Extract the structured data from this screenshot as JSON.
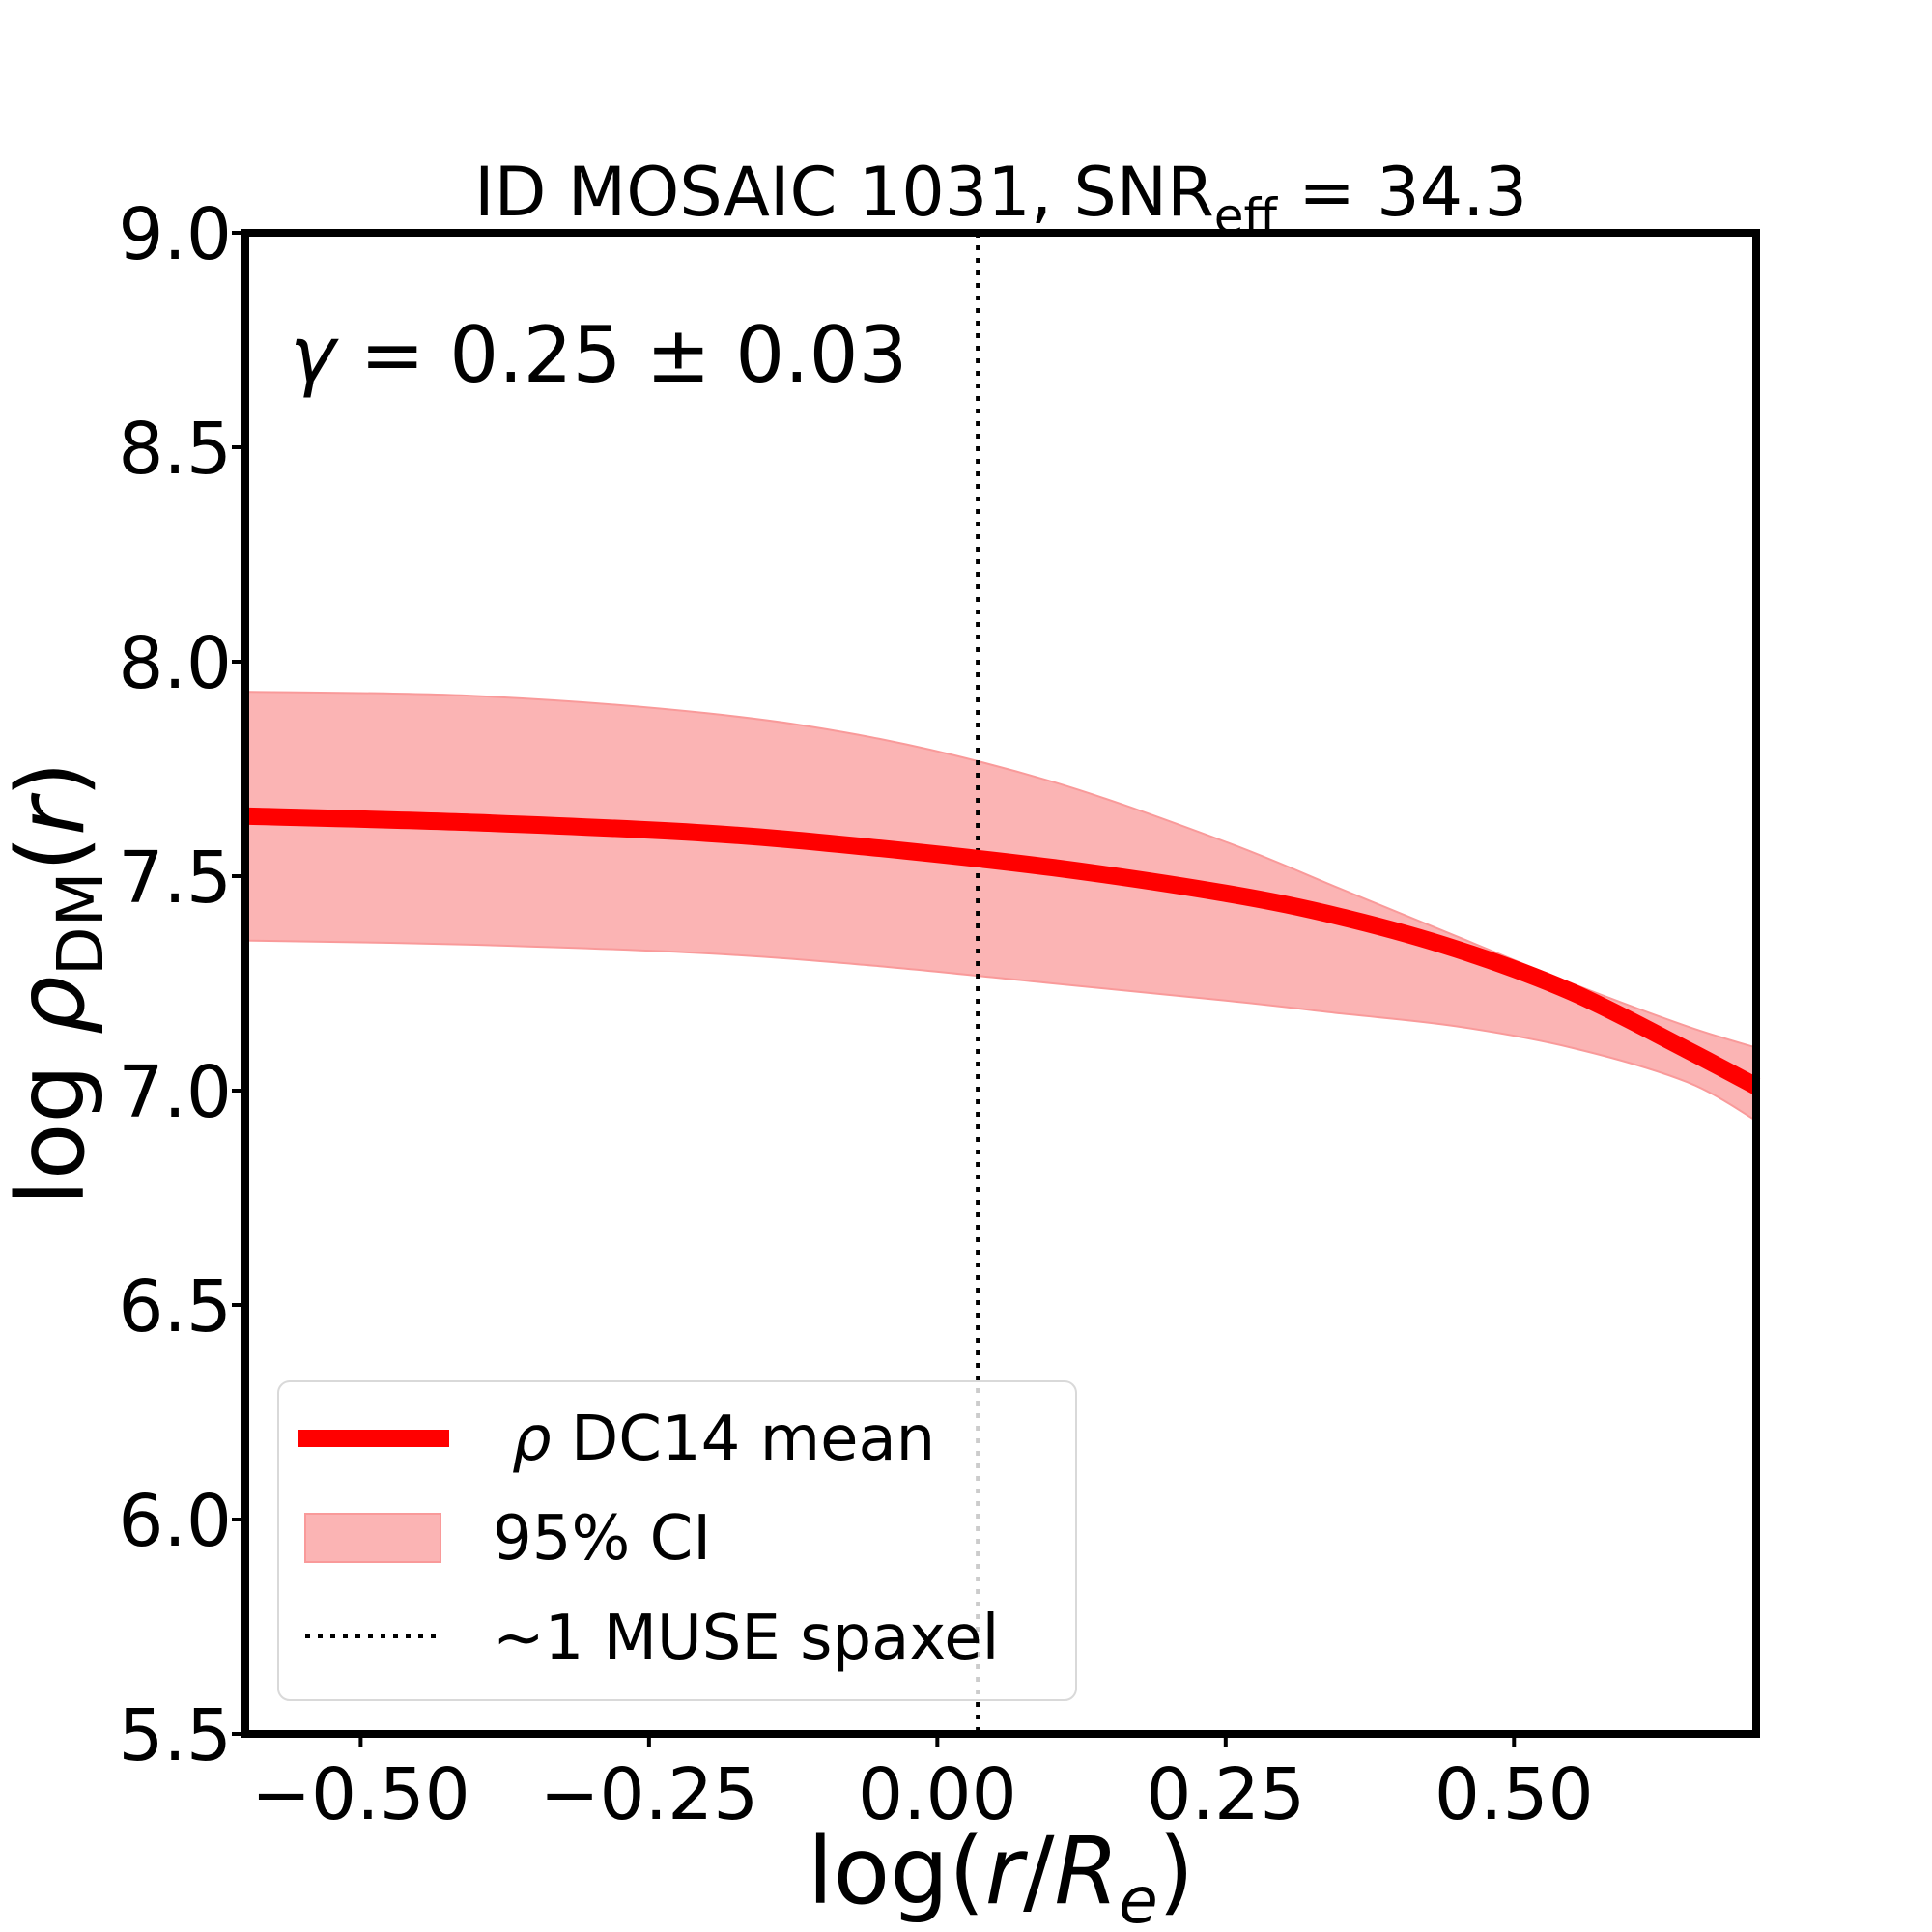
{
  "chart_data": {
    "type": "line",
    "title": {
      "prefix": "ID MOSAIC 1031, SNR",
      "sub": "eff",
      "suffix": " = 34.3"
    },
    "xlabel": {
      "pre": "log(",
      "r": "r",
      "slash": "/",
      "R": "R",
      "sub": "e",
      "post": ")"
    },
    "ylabel": {
      "pre": "log ",
      "rho": "ρ",
      "sub": "DM",
      "open": "(",
      "r": "r",
      "close": ")"
    },
    "xlim": [
      -0.6,
      0.71
    ],
    "ylim": [
      5.5,
      9.0
    ],
    "xticks": [
      -0.5,
      -0.25,
      0.0,
      0.25,
      0.5
    ],
    "xtick_labels": [
      "−0.50",
      "−0.25",
      "0.00",
      "0.25",
      "0.50"
    ],
    "yticks": [
      5.5,
      6.0,
      6.5,
      7.0,
      7.5,
      8.0,
      8.5,
      9.0
    ],
    "ytick_labels": [
      "5.5",
      "6.0",
      "6.5",
      "7.0",
      "7.5",
      "8.0",
      "8.5",
      "9.0"
    ],
    "x": [
      -0.6,
      -0.4,
      -0.2,
      -0.05,
      0.1,
      0.25,
      0.35,
      0.45,
      0.55,
      0.65,
      0.71
    ],
    "series": [
      {
        "name": "ρ DC14 mean",
        "values": [
          7.64,
          7.625,
          7.6,
          7.565,
          7.52,
          7.46,
          7.405,
          7.33,
          7.23,
          7.095,
          7.01
        ],
        "color": "#ff0000"
      }
    ],
    "band": {
      "name": "95% CI",
      "lower": [
        7.35,
        7.34,
        7.32,
        7.29,
        7.25,
        7.21,
        7.18,
        7.15,
        7.1,
        7.02,
        6.93
      ],
      "upper": [
        7.93,
        7.92,
        7.88,
        7.82,
        7.72,
        7.58,
        7.47,
        7.36,
        7.25,
        7.15,
        7.1
      ],
      "color": "#fbb4b4"
    },
    "vline": {
      "x": 0.035,
      "label": "~1 MUSE spaxel"
    },
    "annotation": {
      "gamma": "γ",
      "text": " = 0.25 ± 0.03"
    },
    "legend": {
      "position": "lower-left",
      "mean_greek": "ρ",
      "mean_label": " DC14 mean",
      "ci_label": "95% CI",
      "vline_label": "~1 MUSE spaxel"
    }
  }
}
